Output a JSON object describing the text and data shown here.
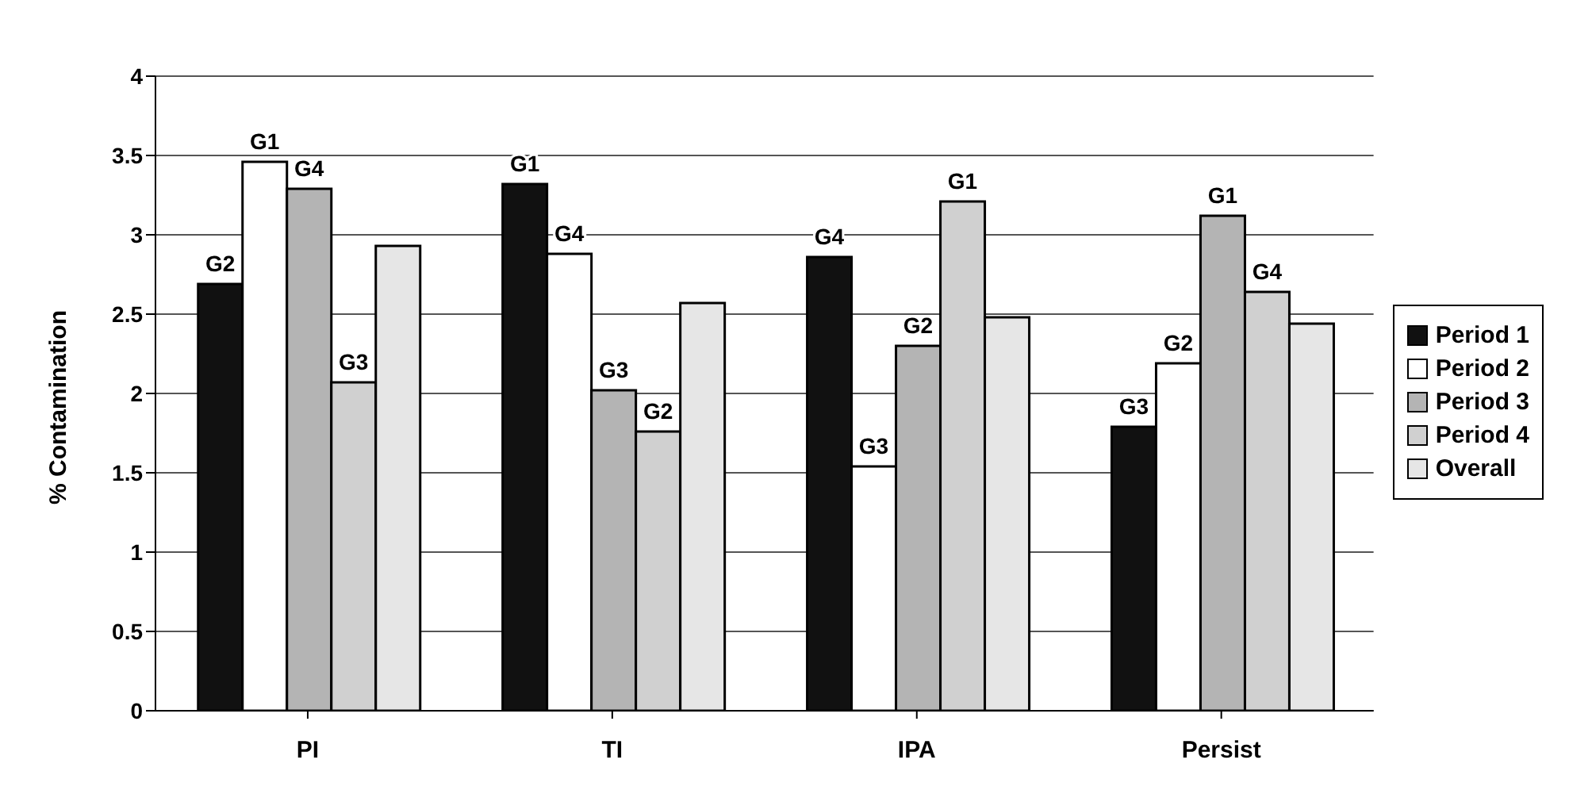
{
  "chart_data": {
    "type": "bar",
    "ylabel": "% Contamination",
    "categories": [
      "PI",
      "TI",
      "IPA",
      "Persist"
    ],
    "series": [
      {
        "name": "Period 1",
        "color": "#111111",
        "values": [
          2.69,
          3.32,
          2.86,
          1.79
        ],
        "value_labels": [
          "G2",
          "G1",
          "G4",
          "G3"
        ]
      },
      {
        "name": "Period 2",
        "color": "#ffffff",
        "values": [
          3.46,
          2.88,
          1.54,
          2.19
        ],
        "value_labels": [
          "G1",
          "G4",
          "G3",
          "G2"
        ]
      },
      {
        "name": "Period 3",
        "color": "#b4b4b4",
        "values": [
          3.29,
          2.02,
          2.3,
          3.12
        ],
        "value_labels": [
          "G4",
          "G3",
          "G2",
          "G1"
        ]
      },
      {
        "name": "Period 4",
        "color": "#d0d0d0",
        "values": [
          2.07,
          1.76,
          3.21,
          2.64
        ],
        "value_labels": [
          "G3",
          "G2",
          "G1",
          "G4"
        ]
      },
      {
        "name": "Overall",
        "color": "#e6e6e6",
        "values": [
          2.93,
          2.57,
          2.48,
          2.44
        ]
      }
    ],
    "ylim": [
      0,
      4
    ],
    "yticks": [
      0,
      0.5,
      1,
      1.5,
      2,
      2.5,
      3,
      3.5,
      4
    ],
    "grid": "y",
    "legend": "right"
  }
}
